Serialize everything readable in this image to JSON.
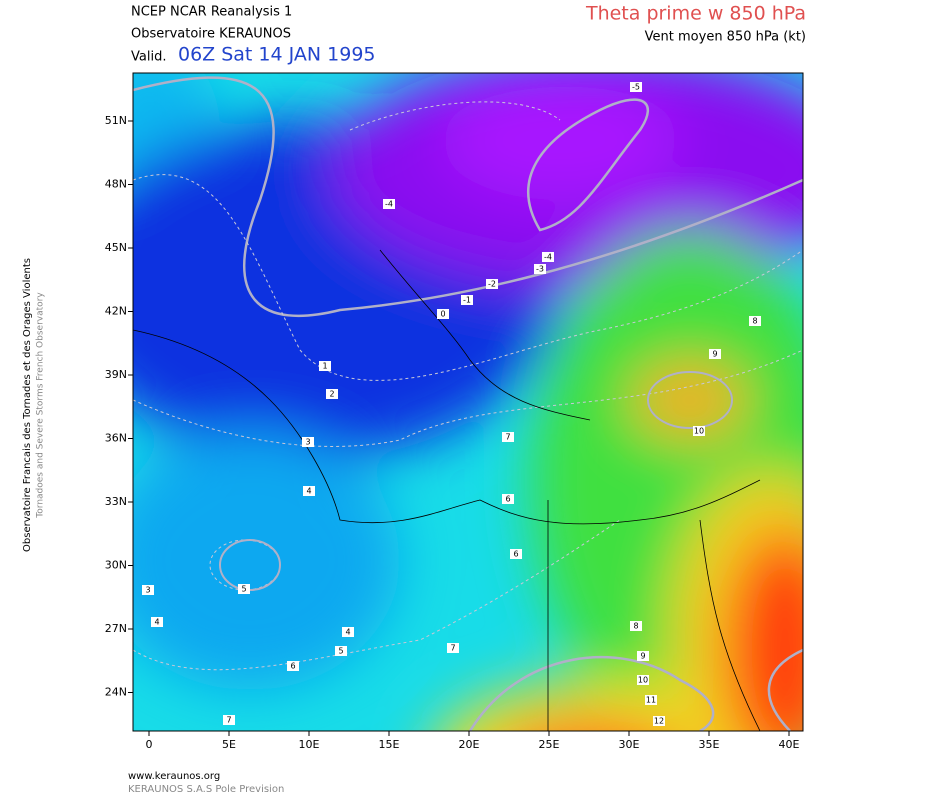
{
  "header": {
    "model": "NCEP NCAR Reanalysis 1",
    "source": "Observatoire KERAUNOS",
    "valid_prefix": "Valid.",
    "valid_time": "06Z Sat 14 JAN 1995",
    "parameter": "Theta prime w 850 hPa",
    "wind": "Vent moyen 850 hPa (kt)"
  },
  "side": {
    "line1": "Observatoire Francais des Tornades et des Orages Violents",
    "line2": "Tornadoes and Severe Storms French Observatory"
  },
  "axes": {
    "x_labels": [
      "0",
      "5E",
      "10E",
      "15E",
      "20E",
      "25E",
      "30E",
      "35E",
      "40E"
    ],
    "y_labels": [
      "51N",
      "48N",
      "45N",
      "42N",
      "39N",
      "36N",
      "33N",
      "30N",
      "27N",
      "24N"
    ]
  },
  "contour_labels": [
    "-5",
    "-4",
    "-4",
    "-3",
    "-2",
    "-1",
    "0",
    "8",
    "9",
    "1",
    "2",
    "10",
    "3",
    "7",
    "4",
    "6",
    "6",
    "3",
    "5",
    "4",
    "8",
    "4",
    "7",
    "5",
    "9",
    "6",
    "10",
    "11",
    "7",
    "12"
  ],
  "footer": {
    "url": "www.keraunos.org",
    "company": "KERAUNOS S.A.S Pole Prevision"
  }
}
